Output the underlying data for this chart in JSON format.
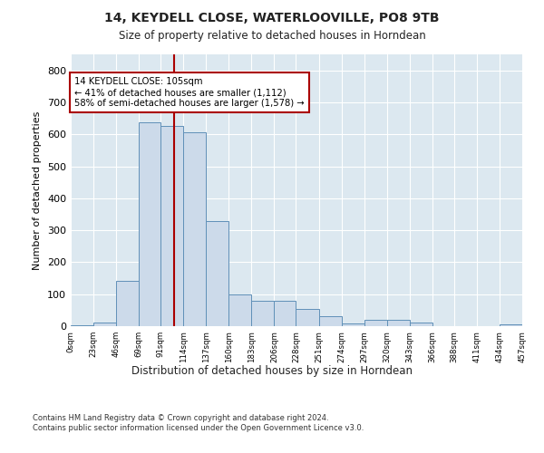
{
  "title": "14, KEYDELL CLOSE, WATERLOOVILLE, PO8 9TB",
  "subtitle": "Size of property relative to detached houses in Horndean",
  "xlabel_bottom": "Distribution of detached houses by size in Horndean",
  "ylabel": "Number of detached properties",
  "footnote": "Contains HM Land Registry data © Crown copyright and database right 2024.\nContains public sector information licensed under the Open Government Licence v3.0.",
  "bin_edges": [
    0,
    23,
    46,
    69,
    91,
    114,
    137,
    160,
    183,
    206,
    228,
    251,
    274,
    297,
    320,
    343,
    366,
    388,
    411,
    434,
    457
  ],
  "bar_heights": [
    2,
    12,
    143,
    638,
    625,
    607,
    330,
    100,
    80,
    80,
    55,
    30,
    8,
    20,
    20,
    10,
    0,
    0,
    0,
    5
  ],
  "bar_color": "#ccdaea",
  "bar_edge_color": "#6090b8",
  "property_line_x": 105,
  "property_line_color": "#aa0000",
  "annotation_text": "14 KEYDELL CLOSE: 105sqm\n← 41% of detached houses are smaller (1,112)\n58% of semi-detached houses are larger (1,578) →",
  "annotation_box_color": "#ffffff",
  "annotation_box_edge": "#aa0000",
  "ylim": [
    0,
    850
  ],
  "yticks": [
    0,
    100,
    200,
    300,
    400,
    500,
    600,
    700,
    800
  ],
  "bg_color": "#dce8f0",
  "grid_color": "#ffffff",
  "fig_bg_color": "#ffffff",
  "tick_labels": [
    "0sqm",
    "23sqm",
    "46sqm",
    "69sqm",
    "91sqm",
    "114sqm",
    "137sqm",
    "160sqm",
    "183sqm",
    "206sqm",
    "228sqm",
    "251sqm",
    "274sqm",
    "297sqm",
    "320sqm",
    "343sqm",
    "366sqm",
    "388sqm",
    "411sqm",
    "434sqm",
    "457sqm"
  ]
}
